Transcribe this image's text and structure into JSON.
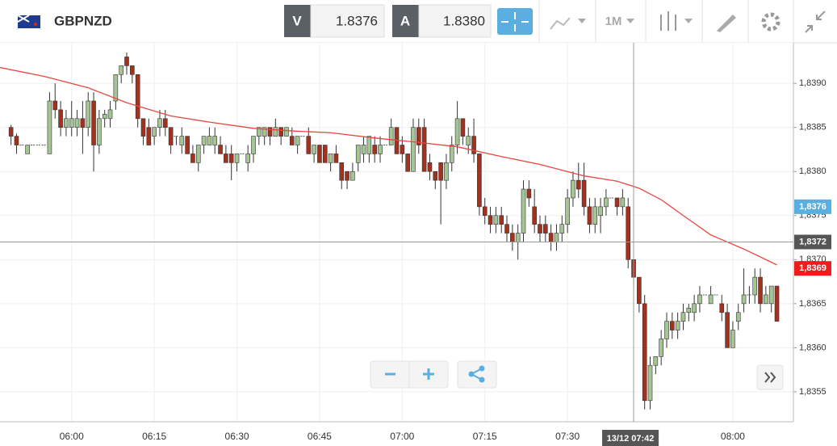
{
  "header": {
    "symbol": "GBPNZD",
    "bid_label": "V",
    "bid": "1.8376",
    "ask_label": "A",
    "ask": "1.8380",
    "interval": "1M"
  },
  "chart_data": {
    "type": "candlestick",
    "x": [
      "05:49",
      "05:50",
      "05:51",
      "05:52",
      "05:53",
      "05:54",
      "05:55",
      "05:56",
      "05:57",
      "05:58",
      "05:59",
      "06:00",
      "06:01",
      "06:02",
      "06:03",
      "06:04",
      "06:05",
      "06:06",
      "06:07",
      "06:08",
      "06:09",
      "06:10",
      "06:11",
      "06:12",
      "06:13",
      "06:14",
      "06:15",
      "06:16",
      "06:17",
      "06:18",
      "06:19",
      "06:20",
      "06:21",
      "06:22",
      "06:23",
      "06:24",
      "06:25",
      "06:26",
      "06:27",
      "06:28",
      "06:29",
      "06:30",
      "06:31",
      "06:32",
      "06:33",
      "06:34",
      "06:35",
      "06:36",
      "06:37",
      "06:38",
      "06:39",
      "06:40",
      "06:41",
      "06:42",
      "06:43",
      "06:44",
      "06:45",
      "06:46",
      "06:47",
      "06:48",
      "06:49",
      "06:50",
      "06:51",
      "06:52",
      "06:53",
      "06:54",
      "06:55",
      "06:56",
      "06:57",
      "06:58",
      "06:59",
      "07:00",
      "07:01",
      "07:02",
      "07:03",
      "07:04",
      "07:05",
      "07:06",
      "07:07",
      "07:08",
      "07:09",
      "07:10",
      "07:11",
      "07:12",
      "07:13",
      "07:14",
      "07:15",
      "07:16",
      "07:17",
      "07:18",
      "07:19",
      "07:20",
      "07:21",
      "07:22",
      "07:23",
      "07:24",
      "07:25",
      "07:26",
      "07:27",
      "07:28",
      "07:29",
      "07:30",
      "07:31",
      "07:32",
      "07:33",
      "07:34",
      "07:35",
      "07:36",
      "07:37",
      "07:38",
      "07:39",
      "07:40",
      "07:41",
      "07:42",
      "07:43",
      "07:44",
      "07:45",
      "07:46",
      "07:47",
      "07:48",
      "07:49",
      "07:50",
      "07:51",
      "07:52",
      "07:53",
      "07:54",
      "07:55",
      "07:56",
      "07:57",
      "07:58",
      "07:59",
      "08:00",
      "08:01",
      "08:02",
      "08:03",
      "08:04",
      "08:05",
      "08:06",
      "08:07",
      "08:08"
    ],
    "ohlc": [
      [
        1.8385,
        1.83853,
        1.8383,
        1.8384
      ],
      [
        1.8384,
        1.83843,
        1.8382,
        1.8383
      ],
      [
        1.8383,
        1.8383,
        1.8383,
        1.8383
      ],
      [
        1.8382,
        1.8383,
        1.8382,
        1.8383
      ],
      [
        1.8383,
        1.8383,
        1.8383,
        1.8383
      ],
      [
        1.8383,
        1.8383,
        1.8383,
        1.8383
      ],
      [
        1.8383,
        1.8383,
        1.8383,
        1.8383
      ],
      [
        1.8382,
        1.8389,
        1.8382,
        1.8388
      ],
      [
        1.8388,
        1.839,
        1.8386,
        1.8387
      ],
      [
        1.8387,
        1.8388,
        1.8384,
        1.8385
      ],
      [
        1.8385,
        1.8387,
        1.8384,
        1.8386
      ],
      [
        1.8385,
        1.8388,
        1.8384,
        1.8386
      ],
      [
        1.8385,
        1.8387,
        1.8384,
        1.8386
      ],
      [
        1.8386,
        1.8388,
        1.8382,
        1.8385
      ],
      [
        1.8385,
        1.8389,
        1.8384,
        1.8388
      ],
      [
        1.8388,
        1.8389,
        1.838,
        1.8383
      ],
      [
        1.8383,
        1.8387,
        1.8382,
        1.8386
      ],
      [
        1.8386,
        1.8387,
        1.8385,
        1.83865
      ],
      [
        1.8386,
        1.8388,
        1.8385,
        1.8387
      ],
      [
        1.8388,
        1.8391,
        1.8387,
        1.8391
      ],
      [
        1.8391,
        1.8392,
        1.839,
        1.8392
      ],
      [
        1.8393,
        1.83935,
        1.8391,
        1.8392
      ],
      [
        1.8392,
        1.8392,
        1.839,
        1.8391
      ],
      [
        1.8391,
        1.8391,
        1.8385,
        1.8386
      ],
      [
        1.8386,
        1.8386,
        1.8383,
        1.8384
      ],
      [
        1.8385,
        1.8386,
        1.8383,
        1.8383
      ],
      [
        1.8384,
        1.8385,
        1.8383,
        1.8385
      ],
      [
        1.8385,
        1.8387,
        1.8384,
        1.8386
      ],
      [
        1.8386,
        1.8387,
        1.8384,
        1.8385
      ],
      [
        1.8385,
        1.8385,
        1.8382,
        1.8383
      ],
      [
        1.8384,
        1.8384,
        1.8383,
        1.8384
      ],
      [
        1.8383,
        1.8385,
        1.8382,
        1.8384
      ],
      [
        1.8384,
        1.8384,
        1.8382,
        1.8382
      ],
      [
        1.8382,
        1.8383,
        1.8381,
        1.8381
      ],
      [
        1.8381,
        1.8383,
        1.838,
        1.8383
      ],
      [
        1.8383,
        1.8384,
        1.8382,
        1.8384
      ],
      [
        1.8383,
        1.8385,
        1.8383,
        1.8384
      ],
      [
        1.8383,
        1.8385,
        1.8382,
        1.8384
      ],
      [
        1.8383,
        1.8384,
        1.8382,
        1.8382
      ],
      [
        1.8382,
        1.8383,
        1.8381,
        1.8381
      ],
      [
        1.8382,
        1.8383,
        1.8379,
        1.8381
      ],
      [
        1.8381,
        1.8382,
        1.838,
        1.8382
      ],
      [
        1.8382,
        1.8382,
        1.8382,
        1.8382
      ],
      [
        1.8381,
        1.8383,
        1.838,
        1.8382
      ],
      [
        1.8382,
        1.8384,
        1.8381,
        1.8384
      ],
      [
        1.8384,
        1.8385,
        1.8383,
        1.8385
      ],
      [
        1.8384,
        1.8385,
        1.8383,
        1.8385
      ],
      [
        1.8385,
        1.8385,
        1.8383,
        1.8384
      ],
      [
        1.8384,
        1.8386,
        1.8384,
        1.8385
      ],
      [
        1.8385,
        1.8385,
        1.8383,
        1.8384
      ],
      [
        1.8384,
        1.8385,
        1.8384,
        1.8385
      ],
      [
        1.8384,
        1.8385,
        1.8383,
        1.8383
      ],
      [
        1.8383,
        1.8384,
        1.8382,
        1.8384
      ],
      [
        1.8384,
        1.8384,
        1.8384,
        1.8384
      ],
      [
        1.8384,
        1.8385,
        1.8382,
        1.8382
      ],
      [
        1.8382,
        1.8383,
        1.8381,
        1.8383
      ],
      [
        1.8383,
        1.8383,
        1.8381,
        1.8381
      ],
      [
        1.8383,
        1.8383,
        1.8381,
        1.8381
      ],
      [
        1.8381,
        1.8382,
        1.838,
        1.8382
      ],
      [
        1.8382,
        1.8383,
        1.8381,
        1.8381
      ],
      [
        1.8381,
        1.8381,
        1.8378,
        1.8379
      ],
      [
        1.838,
        1.838,
        1.8378,
        1.8379
      ],
      [
        1.8379,
        1.8381,
        1.8379,
        1.838
      ],
      [
        1.8381,
        1.8383,
        1.838,
        1.8383
      ],
      [
        1.8382,
        1.8384,
        1.8381,
        1.8383
      ],
      [
        1.8382,
        1.8384,
        1.8381,
        1.8384
      ],
      [
        1.8383,
        1.8384,
        1.8381,
        1.8382
      ],
      [
        1.8382,
        1.8384,
        1.8381,
        1.8383
      ],
      [
        1.8383,
        1.8383,
        1.8383,
        1.8383
      ],
      [
        1.8383,
        1.8386,
        1.8383,
        1.8385
      ],
      [
        1.8385,
        1.8385,
        1.8382,
        1.8382
      ],
      [
        1.8383,
        1.8384,
        1.8381,
        1.8382
      ],
      [
        1.8382,
        1.8382,
        1.838,
        1.838
      ],
      [
        1.838,
        1.8386,
        1.838,
        1.8385
      ],
      [
        1.8385,
        1.8386,
        1.8382,
        1.8383
      ],
      [
        1.8385,
        1.8386,
        1.838,
        1.838
      ],
      [
        1.8381,
        1.8382,
        1.8379,
        1.838
      ],
      [
        1.838,
        1.838,
        1.8378,
        1.8379
      ],
      [
        1.8381,
        1.8381,
        1.8374,
        1.8379
      ],
      [
        1.8379,
        1.8382,
        1.8378,
        1.8381
      ],
      [
        1.8381,
        1.8384,
        1.838,
        1.8383
      ],
      [
        1.8383,
        1.8388,
        1.8382,
        1.8386
      ],
      [
        1.8386,
        1.8386,
        1.8383,
        1.8384
      ],
      [
        1.8383,
        1.8385,
        1.8382,
        1.8384
      ],
      [
        1.8384,
        1.8386,
        1.8381,
        1.8382
      ],
      [
        1.8382,
        1.8382,
        1.8375,
        1.8376
      ],
      [
        1.8376,
        1.8377,
        1.8374,
        1.8375
      ],
      [
        1.8375,
        1.8376,
        1.8373,
        1.8374
      ],
      [
        1.8374,
        1.8376,
        1.8373,
        1.8375
      ],
      [
        1.8375,
        1.8376,
        1.8373,
        1.8374
      ],
      [
        1.8374,
        1.8375,
        1.8372,
        1.8373
      ],
      [
        1.8373,
        1.8374,
        1.8371,
        1.8372
      ],
      [
        1.8372,
        1.8374,
        1.837,
        1.8373
      ],
      [
        1.8373,
        1.8379,
        1.8372,
        1.8378
      ],
      [
        1.8378,
        1.8379,
        1.8376,
        1.8377
      ],
      [
        1.8376,
        1.8378,
        1.8373,
        1.8374
      ],
      [
        1.8374,
        1.8375,
        1.8372,
        1.8373
      ],
      [
        1.8374,
        1.8375,
        1.8372,
        1.8373
      ],
      [
        1.8373,
        1.8374,
        1.8371,
        1.8372
      ],
      [
        1.8372,
        1.8374,
        1.8371,
        1.8373
      ],
      [
        1.8373,
        1.8375,
        1.8372,
        1.8374
      ],
      [
        1.8374,
        1.8378,
        1.8373,
        1.8377
      ],
      [
        1.8377,
        1.838,
        1.8376,
        1.8379
      ],
      [
        1.8379,
        1.8381,
        1.8377,
        1.8378
      ],
      [
        1.8379,
        1.8381,
        1.8375,
        1.8376
      ],
      [
        1.8376,
        1.8377,
        1.8373,
        1.8374
      ],
      [
        1.8374,
        1.8377,
        1.8373,
        1.8376
      ],
      [
        1.8375,
        1.8377,
        1.8373,
        1.8376
      ],
      [
        1.8376,
        1.8378,
        1.8375,
        1.8377
      ],
      [
        1.8377,
        1.8377,
        1.8377,
        1.8377
      ],
      [
        1.8377,
        1.8377,
        1.8375,
        1.8376
      ],
      [
        1.8376,
        1.8378,
        1.8375,
        1.8377
      ],
      [
        1.8376,
        1.8377,
        1.8369,
        1.837
      ],
      [
        1.837,
        1.837,
        1.8367,
        1.8368
      ],
      [
        1.8368,
        1.8368,
        1.8364,
        1.8365
      ],
      [
        1.8365,
        1.8366,
        1.8353,
        1.8354
      ],
      [
        1.8354,
        1.8359,
        1.8353,
        1.8358
      ],
      [
        1.8358,
        1.8359,
        1.8357,
        1.8359
      ],
      [
        1.8359,
        1.8362,
        1.8358,
        1.8361
      ],
      [
        1.8361,
        1.8364,
        1.836,
        1.8363
      ],
      [
        1.8363,
        1.8364,
        1.8361,
        1.8362
      ],
      [
        1.8362,
        1.8364,
        1.8361,
        1.8363
      ],
      [
        1.8363,
        1.8365,
        1.8362,
        1.8364
      ],
      [
        1.8364,
        1.8365,
        1.8363,
        1.83645
      ],
      [
        1.8364,
        1.8366,
        1.8363,
        1.8365
      ],
      [
        1.8365,
        1.8367,
        1.8364,
        1.8366
      ],
      [
        1.8366,
        1.8366,
        1.8366,
        1.8366
      ],
      [
        1.8365,
        1.8367,
        1.8365,
        1.8366
      ],
      [
        1.8366,
        1.8366,
        1.8366,
        1.8366
      ],
      [
        1.8365,
        1.8366,
        1.8363,
        1.8364
      ],
      [
        1.8364,
        1.8365,
        1.836,
        1.836
      ],
      [
        1.836,
        1.8363,
        1.836,
        1.8362
      ],
      [
        1.8363,
        1.8365,
        1.8362,
        1.8364
      ],
      [
        1.8365,
        1.8369,
        1.8364,
        1.8366
      ],
      [
        1.8366,
        1.8367,
        1.8365,
        1.8366
      ],
      [
        1.8366,
        1.8369,
        1.8365,
        1.8368
      ],
      [
        1.8368,
        1.8369,
        1.8364,
        1.8365
      ],
      [
        1.8365,
        1.8367,
        1.8365,
        1.8366
      ],
      [
        1.8365,
        1.8367,
        1.8364,
        1.8367
      ],
      [
        1.8367,
        1.8367,
        1.8363,
        1.8363
      ]
    ],
    "up_color": "#a6c595",
    "down_color": "#a2311d",
    "ma": {
      "x": [
        "05:47",
        "05:55",
        "06:03",
        "06:10",
        "06:18",
        "06:25",
        "06:33",
        "06:40",
        "06:47",
        "06:55",
        "07:03",
        "07:10",
        "07:18",
        "07:25",
        "07:33",
        "07:39",
        "07:43",
        "07:47",
        "07:51",
        "07:56",
        "08:02",
        "08:08"
      ],
      "values": [
        1.83918,
        1.83908,
        1.83895,
        1.83878,
        1.83863,
        1.83856,
        1.83849,
        1.83846,
        1.83844,
        1.83838,
        1.83833,
        1.83828,
        1.83817,
        1.83808,
        1.83795,
        1.83789,
        1.83781,
        1.83768,
        1.8375,
        1.83728,
        1.83712,
        1.83694
      ],
      "color": "#e8463f"
    },
    "xlim": [
      "05:47",
      "08:11"
    ],
    "xticks": [
      "06:00",
      "06:15",
      "06:30",
      "06:45",
      "07:00",
      "07:15",
      "07:30",
      "08:00"
    ],
    "ylim": [
      1.83516,
      1.83946
    ],
    "yticks": [
      {
        "value": 1.8355,
        "label": "1,8355"
      },
      {
        "value": 1.836,
        "label": "1,8360"
      },
      {
        "value": 1.8365,
        "label": "1,8365"
      },
      {
        "value": 1.837,
        "label": "1,8370"
      },
      {
        "value": 1.8375,
        "label": "1,8375"
      },
      {
        "value": 1.838,
        "label": "1,8380"
      },
      {
        "value": 1.8385,
        "label": "1,8385"
      },
      {
        "value": 1.839,
        "label": "1,8390"
      }
    ],
    "grid": true,
    "price_labels": [
      {
        "value": 1.8376,
        "label": "1,8376",
        "color": "#5aaee0"
      },
      {
        "value": 1.8369,
        "label": "1,8369",
        "color": "#ee1c1c"
      }
    ],
    "crosshair": {
      "x": "07:42",
      "x_label": "13/12 07:42",
      "y": 1.8372,
      "y_label": "1,8372",
      "color": "#555555"
    }
  }
}
